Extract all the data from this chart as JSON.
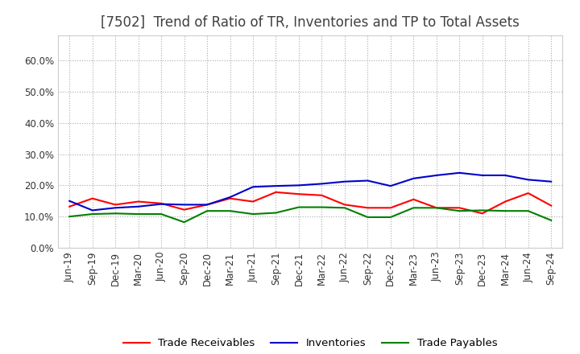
{
  "title": "[7502]  Trend of Ratio of TR, Inventories and TP to Total Assets",
  "ylim": [
    0.0,
    0.68
  ],
  "yticks": [
    0.0,
    0.1,
    0.2,
    0.3,
    0.4,
    0.5,
    0.6
  ],
  "x_labels": [
    "Jun-19",
    "Sep-19",
    "Dec-19",
    "Mar-20",
    "Jun-20",
    "Sep-20",
    "Dec-20",
    "Mar-21",
    "Jun-21",
    "Sep-21",
    "Dec-21",
    "Mar-22",
    "Jun-22",
    "Sep-22",
    "Dec-22",
    "Mar-23",
    "Jun-23",
    "Sep-23",
    "Dec-23",
    "Mar-24",
    "Jun-24",
    "Sep-24"
  ],
  "trade_receivables": [
    0.132,
    0.158,
    0.138,
    0.148,
    0.142,
    0.122,
    0.138,
    0.158,
    0.148,
    0.178,
    0.172,
    0.168,
    0.138,
    0.128,
    0.128,
    0.155,
    0.128,
    0.128,
    0.11,
    0.148,
    0.175,
    0.135
  ],
  "inventories": [
    0.15,
    0.12,
    0.128,
    0.132,
    0.14,
    0.138,
    0.138,
    0.162,
    0.195,
    0.198,
    0.2,
    0.205,
    0.212,
    0.215,
    0.198,
    0.222,
    0.232,
    0.24,
    0.232,
    0.232,
    0.218,
    0.212
  ],
  "trade_payables": [
    0.1,
    0.108,
    0.11,
    0.108,
    0.108,
    0.082,
    0.118,
    0.118,
    0.108,
    0.112,
    0.13,
    0.13,
    0.128,
    0.098,
    0.098,
    0.128,
    0.128,
    0.118,
    0.12,
    0.118,
    0.118,
    0.088
  ],
  "tr_color": "#ff0000",
  "inv_color": "#0000cc",
  "tp_color": "#008000",
  "background_color": "#ffffff",
  "grid_color": "#aaaaaa",
  "title_color": "#404040",
  "title_fontsize": 12,
  "tick_fontsize": 8.5,
  "legend_fontsize": 9.5
}
